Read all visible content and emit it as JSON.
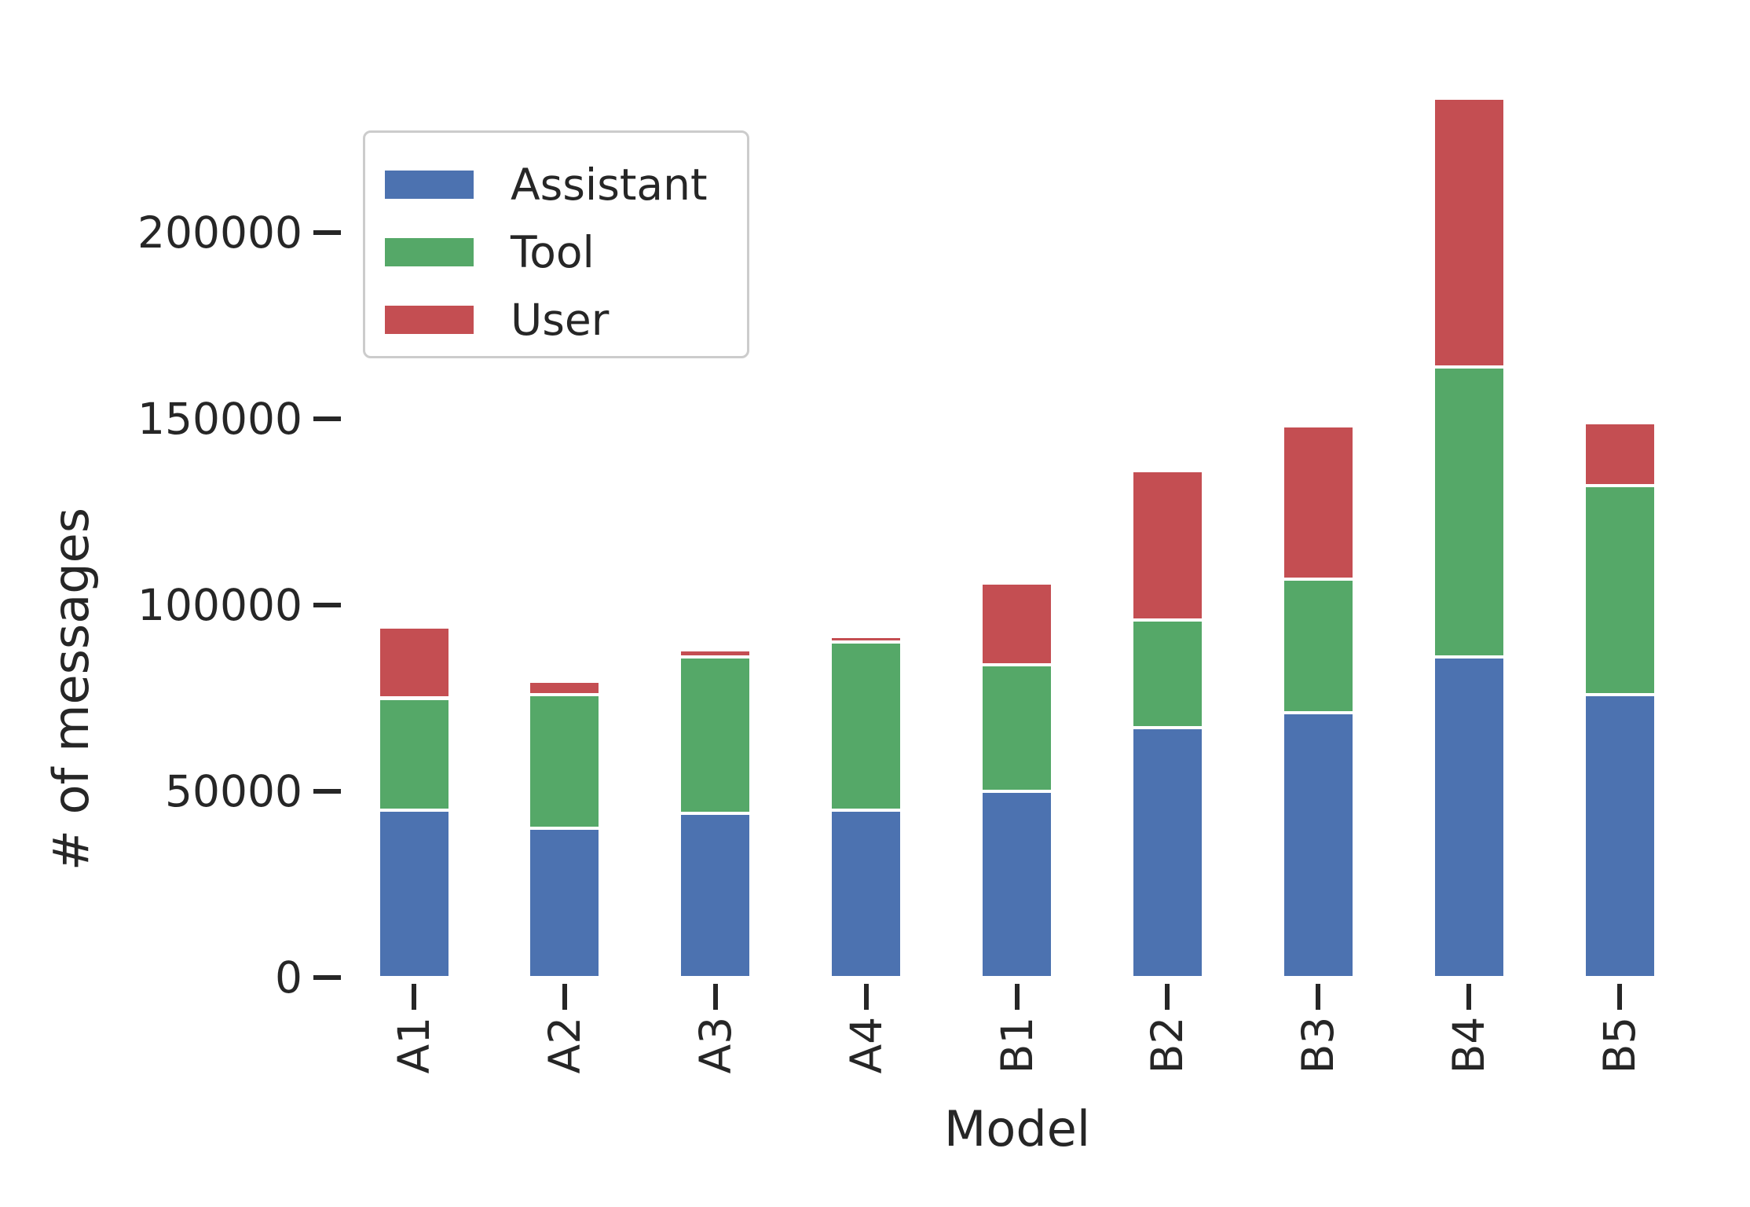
{
  "chart_data": {
    "type": "bar",
    "stacked": true,
    "title": "",
    "xlabel": "Model",
    "ylabel": "# of messages",
    "categories": [
      "A1",
      "A2",
      "A3",
      "A4",
      "B1",
      "B2",
      "B3",
      "B4",
      "B5"
    ],
    "series": [
      {
        "name": "Assistant",
        "color": "#4c72b0",
        "values": [
          45000,
          40000,
          44000,
          45000,
          50000,
          67000,
          71000,
          86000,
          76000
        ]
      },
      {
        "name": "Tool",
        "color": "#55a868",
        "values": [
          30000,
          36000,
          42000,
          45000,
          34000,
          29000,
          36000,
          78000,
          56000
        ]
      },
      {
        "name": "User",
        "color": "#c44e52",
        "values": [
          19000,
          3500,
          2000,
          1500,
          22000,
          40000,
          41000,
          72000,
          17000
        ]
      }
    ],
    "yticks": [
      0,
      50000,
      100000,
      150000,
      200000
    ],
    "ylim": [
      0,
      245000
    ],
    "grid": false,
    "legend": {
      "position": "upper left",
      "entries": [
        "Assistant",
        "Tool",
        "User"
      ]
    },
    "tick_color": "#262626",
    "text_color": "#262626",
    "legend_border_color": "#cccccc",
    "background_color": "#ffffff"
  }
}
